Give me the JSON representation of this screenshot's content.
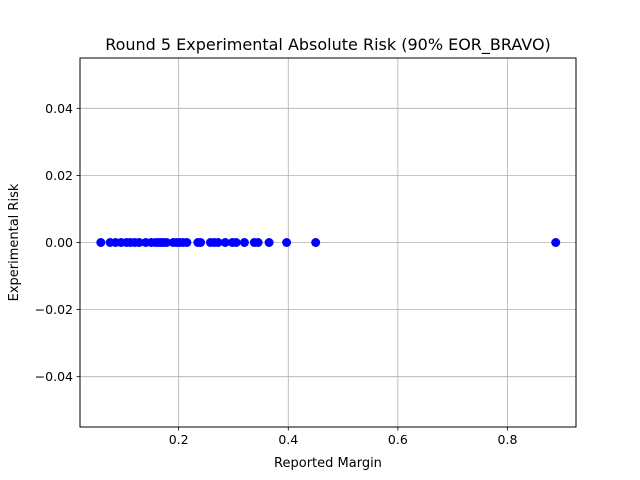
{
  "chart_data": {
    "type": "scatter",
    "title": "Round 5 Experimental Absolute Risk (90% EOR_BRAVO)",
    "xlabel": "Reported Margin",
    "ylabel": "Experimental Risk",
    "xlim": [
      0.02,
      0.925
    ],
    "ylim": [
      -0.055,
      0.055
    ],
    "xticks": [
      0.2,
      0.4,
      0.6,
      0.8
    ],
    "xtick_labels": [
      "0.2",
      "0.4",
      "0.6",
      "0.8"
    ],
    "yticks": [
      -0.04,
      -0.02,
      0.0,
      0.02,
      0.04
    ],
    "ytick_labels": [
      "−0.04",
      "−0.02",
      "0.00",
      "0.02",
      "0.04"
    ],
    "grid": true,
    "marker_color": "#0000ff",
    "series": [
      {
        "x": [
          0.058,
          0.075,
          0.085,
          0.095,
          0.105,
          0.112,
          0.12,
          0.128,
          0.14,
          0.15,
          0.158,
          0.163,
          0.168,
          0.172,
          0.178,
          0.19,
          0.196,
          0.202,
          0.208,
          0.215,
          0.235,
          0.24,
          0.258,
          0.265,
          0.272,
          0.285,
          0.298,
          0.305,
          0.32,
          0.338,
          0.345,
          0.365,
          0.397,
          0.45,
          0.888
        ],
        "y": [
          0,
          0,
          0,
          0,
          0,
          0,
          0,
          0,
          0,
          0,
          0,
          0,
          0,
          0,
          0,
          0,
          0,
          0,
          0,
          0,
          0,
          0,
          0,
          0,
          0,
          0,
          0,
          0,
          0,
          0,
          0,
          0,
          0,
          0,
          0
        ]
      }
    ]
  }
}
